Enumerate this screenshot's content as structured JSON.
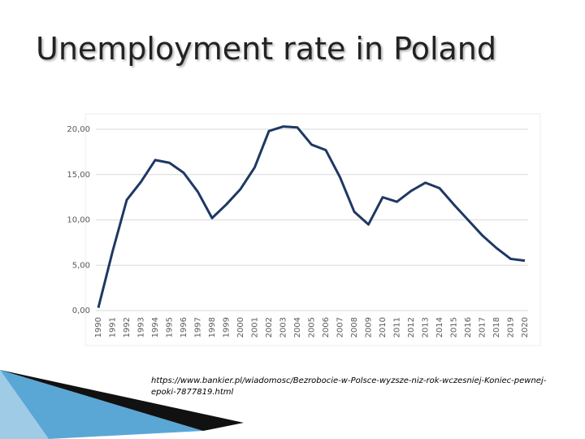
{
  "title": "Unemployment rate in Poland",
  "source": "https://www.bankier.pl/wiadomosc/Bezrobocie-w-Polsce-wyzsze-niz-rok-wczesniej-Koniec-pewnej-epoki-7877819.html",
  "chart_data": {
    "type": "line",
    "categories": [
      "1990",
      "1991",
      "1992",
      "1993",
      "1994",
      "1995",
      "1996",
      "1997",
      "1998",
      "1999",
      "2000",
      "2001",
      "2002",
      "2003",
      "2004",
      "2005",
      "2006",
      "2007",
      "2008",
      "2009",
      "2010",
      "2011",
      "2012",
      "2013",
      "2014",
      "2015",
      "2016",
      "2017",
      "2018",
      "2019",
      "2020"
    ],
    "series": [
      {
        "color": "#1f3864",
        "values": [
          0.3,
          6.5,
          12.2,
          14.2,
          16.6,
          16.3,
          15.2,
          13.1,
          10.2,
          11.7,
          13.4,
          15.8,
          19.8,
          20.3,
          20.2,
          18.3,
          17.7,
          14.7,
          10.9,
          9.5,
          12.5,
          12.0,
          13.2,
          14.1,
          13.5,
          11.7,
          10.0,
          8.3,
          6.9,
          5.7,
          5.5
        ]
      }
    ],
    "ylim": [
      0,
      20
    ],
    "yticks": [
      {
        "value": 0,
        "label": "0,00"
      },
      {
        "value": 5,
        "label": "5,00"
      },
      {
        "value": 10,
        "label": "10,00"
      },
      {
        "value": 15,
        "label": "15,00"
      },
      {
        "value": 20,
        "label": "20,00"
      }
    ],
    "grid": true
  }
}
